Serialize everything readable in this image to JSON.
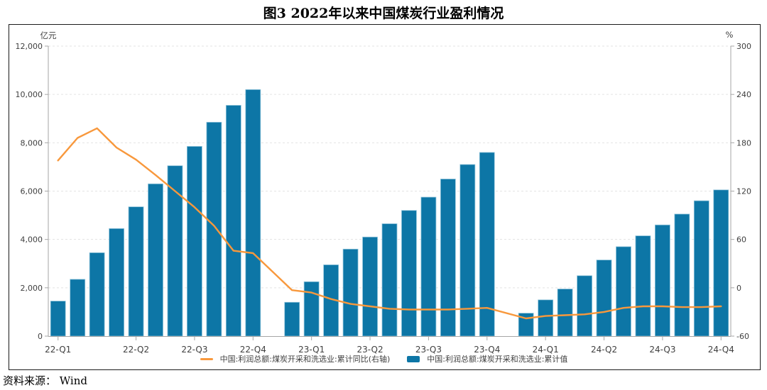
{
  "title": "图3  2022年以来中国煤炭行业盈利情况",
  "source": "资料来源： Wind",
  "axes": {
    "left_unit": "亿元",
    "right_unit": "%",
    "left_tick_labels": [
      "0",
      "2,000",
      "4,000",
      "6,000",
      "8,000",
      "10,000",
      "12,000"
    ],
    "right_tick_labels": [
      "-60",
      "0",
      "60",
      "120",
      "180",
      "240",
      "300"
    ]
  },
  "legend": {
    "line_label": "中国:利润总额:煤炭开采和洗选业:累计同比(右轴)",
    "bar_label": "中国:利润总额:煤炭开采和洗选业:累计值"
  },
  "colors": {
    "bar": "#0d76a6",
    "bar_edge": "#8fc3da",
    "line": "#f8983c",
    "grid": "#e3e3e3",
    "axis": "#a6a6a6",
    "text": "#404040"
  },
  "chart_data": {
    "type": "combo bar+line, monthly cumulative data (no January values)",
    "categories": [
      "2022-02",
      "2022-03",
      "2022-04",
      "2022-05",
      "2022-06",
      "2022-07",
      "2022-08",
      "2022-09",
      "2022-10",
      "2022-11",
      "2022-12",
      "2023-02",
      "2023-03",
      "2023-04",
      "2023-05",
      "2023-06",
      "2023-07",
      "2023-08",
      "2023-09",
      "2023-10",
      "2023-11",
      "2023-12",
      "2024-02",
      "2024-03",
      "2024-04",
      "2024-05",
      "2024-06",
      "2024-07",
      "2024-08",
      "2024-09",
      "2024-10",
      "2024-11",
      "2024-12"
    ],
    "series": [
      {
        "name": "中国:利润总额:煤炭开采和洗选业:累计值",
        "type": "bar",
        "axis": "left",
        "unit": "亿元",
        "values": [
          1450,
          2350,
          3450,
          4450,
          5350,
          6300,
          7050,
          7850,
          8850,
          9550,
          10200,
          1400,
          2250,
          2950,
          3600,
          4100,
          4650,
          5200,
          5750,
          6500,
          7100,
          7600,
          950,
          1500,
          1950,
          2500,
          3150,
          3700,
          4150,
          4600,
          5050,
          5600,
          6050
        ]
      },
      {
        "name": "中国:利润总额:煤炭开采和洗选业:累计同比(右轴)",
        "type": "line",
        "axis": "right",
        "unit": "%",
        "values": [
          158,
          186,
          198,
          174,
          159,
          140,
          120,
          100,
          77,
          46,
          43,
          -3,
          -6,
          -14,
          -20,
          -23,
          -26,
          -27,
          -27,
          -27,
          -26,
          -25,
          -38,
          -35,
          -34,
          -33,
          -30,
          -25,
          -23,
          -23,
          -24,
          -24,
          -23
        ]
      }
    ],
    "x_ticks": [
      {
        "label": "22-Q1",
        "period": "2022-02"
      },
      {
        "label": "22-Q2",
        "period": "2022-06"
      },
      {
        "label": "22-Q3",
        "period": "2022-09"
      },
      {
        "label": "22-Q4",
        "period": "2022-12"
      },
      {
        "label": "23-Q1",
        "period": "2023-03"
      },
      {
        "label": "23-Q2",
        "period": "2023-06"
      },
      {
        "label": "23-Q3",
        "period": "2023-09"
      },
      {
        "label": "23-Q4",
        "period": "2023-12"
      },
      {
        "label": "24-Q1",
        "period": "2024-03"
      },
      {
        "label": "24-Q2",
        "period": "2024-06"
      },
      {
        "label": "24-Q3",
        "period": "2024-09"
      },
      {
        "label": "24-Q4",
        "period": "2024-12"
      }
    ],
    "y_left": {
      "min": 0,
      "max": 12000,
      "step": 2000,
      "label": "亿元"
    },
    "y_right": {
      "min": -60,
      "max": 300,
      "step": 60,
      "label": "%"
    },
    "grid": "horizontal dashed",
    "legend_position": "bottom center"
  }
}
